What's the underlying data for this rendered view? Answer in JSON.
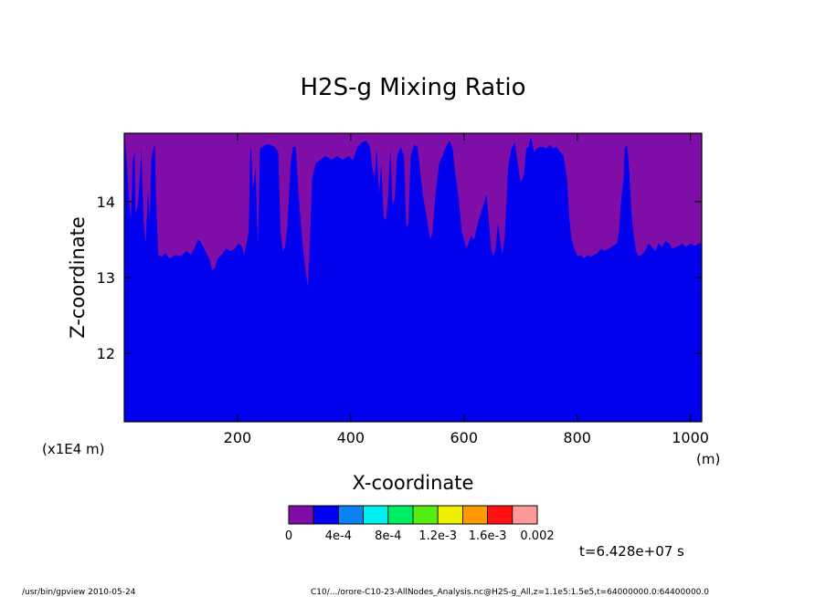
{
  "chart_data": {
    "type": "heatmap",
    "title": "H2S-g Mixing Ratio",
    "xlabel": "X-coordinate",
    "ylabel": "Z-coordinate",
    "x_unit": "(m)",
    "y_scale_note": "(x1E4 m)",
    "xlim": [
      0,
      1020
    ],
    "ylim": [
      11.1,
      14.9
    ],
    "x_ticks": [
      "200",
      "400",
      "600",
      "800",
      "1000"
    ],
    "x_tick_values": [
      200,
      400,
      600,
      800,
      1000
    ],
    "y_ticks": [
      "12",
      "13",
      "14"
    ],
    "y_tick_values": [
      12,
      13,
      14
    ],
    "colorbar": {
      "colors": [
        "#7f0ea8",
        "#0000ee",
        "#0a82f0",
        "#00f0f0",
        "#00ee66",
        "#55ee11",
        "#eeee00",
        "#ff9900",
        "#ff1111",
        "#ff9999"
      ],
      "labels": [
        "0",
        "4e-4",
        "8e-4",
        "1.2e-3",
        "1.6e-3",
        "0.002"
      ]
    },
    "boundary": {
      "description_free_levels": [
        0,
        0.0004
      ],
      "points": [
        [
          0,
          14.9
        ],
        [
          2,
          14.75
        ],
        [
          5,
          14.45
        ],
        [
          8,
          14.05
        ],
        [
          12,
          13.75
        ],
        [
          15,
          14.55
        ],
        [
          18,
          14.65
        ],
        [
          20,
          13.85
        ],
        [
          24,
          13.95
        ],
        [
          28,
          14.35
        ],
        [
          30,
          14.72
        ],
        [
          34,
          13.75
        ],
        [
          38,
          13.45
        ],
        [
          42,
          14.15
        ],
        [
          45,
          13.75
        ],
        [
          48,
          14.55
        ],
        [
          52,
          14.72
        ],
        [
          54,
          14.75
        ],
        [
          56,
          14.05
        ],
        [
          60,
          13.3
        ],
        [
          66,
          13.27
        ],
        [
          72,
          13.32
        ],
        [
          80,
          13.25
        ],
        [
          90,
          13.3
        ],
        [
          100,
          13.28
        ],
        [
          110,
          13.35
        ],
        [
          118,
          13.3
        ],
        [
          125,
          13.4
        ],
        [
          130,
          13.5
        ],
        [
          135,
          13.47
        ],
        [
          140,
          13.4
        ],
        [
          145,
          13.32
        ],
        [
          150,
          13.25
        ],
        [
          155,
          13.1
        ],
        [
          160,
          13.12
        ],
        [
          165,
          13.25
        ],
        [
          172,
          13.3
        ],
        [
          180,
          13.38
        ],
        [
          188,
          13.35
        ],
        [
          195,
          13.38
        ],
        [
          202,
          13.45
        ],
        [
          208,
          13.4
        ],
        [
          212,
          13.3
        ],
        [
          216,
          13.45
        ],
        [
          220,
          13.6
        ],
        [
          222,
          14.6
        ],
        [
          224,
          14.72
        ],
        [
          227,
          14.15
        ],
        [
          232,
          14.45
        ],
        [
          236,
          13.4
        ],
        [
          240,
          14.7
        ],
        [
          244,
          14.72
        ],
        [
          250,
          14.75
        ],
        [
          258,
          14.75
        ],
        [
          266,
          14.72
        ],
        [
          272,
          14.65
        ],
        [
          276,
          13.6
        ],
        [
          280,
          13.35
        ],
        [
          284,
          13.4
        ],
        [
          288,
          13.65
        ],
        [
          294,
          14.5
        ],
        [
          298,
          14.72
        ],
        [
          303,
          14.72
        ],
        [
          307,
          14.2
        ],
        [
          312,
          13.7
        ],
        [
          316,
          13.35
        ],
        [
          320,
          13.1
        ],
        [
          324,
          12.88
        ],
        [
          327,
          13.3
        ],
        [
          332,
          14.3
        ],
        [
          338,
          14.5
        ],
        [
          346,
          14.55
        ],
        [
          356,
          14.6
        ],
        [
          366,
          14.55
        ],
        [
          376,
          14.6
        ],
        [
          386,
          14.55
        ],
        [
          396,
          14.6
        ],
        [
          404,
          14.55
        ],
        [
          412,
          14.72
        ],
        [
          420,
          14.78
        ],
        [
          428,
          14.8
        ],
        [
          434,
          14.72
        ],
        [
          438,
          14.45
        ],
        [
          442,
          14.3
        ],
        [
          446,
          14.7
        ],
        [
          450,
          14.1
        ],
        [
          454,
          14.5
        ],
        [
          458,
          13.8
        ],
        [
          462,
          13.75
        ],
        [
          466,
          14.05
        ],
        [
          470,
          14.7
        ],
        [
          474,
          13.95
        ],
        [
          478,
          14.05
        ],
        [
          482,
          14.6
        ],
        [
          488,
          14.72
        ],
        [
          494,
          14.6
        ],
        [
          498,
          13.65
        ],
        [
          502,
          13.72
        ],
        [
          506,
          14.6
        ],
        [
          512,
          14.75
        ],
        [
          518,
          14.72
        ],
        [
          524,
          14.3
        ],
        [
          528,
          14.05
        ],
        [
          532,
          13.9
        ],
        [
          536,
          13.7
        ],
        [
          540,
          13.5
        ],
        [
          544,
          13.58
        ],
        [
          550,
          14.1
        ],
        [
          556,
          14.5
        ],
        [
          562,
          14.6
        ],
        [
          568,
          14.72
        ],
        [
          574,
          14.8
        ],
        [
          580,
          14.7
        ],
        [
          584,
          14.4
        ],
        [
          588,
          14.2
        ],
        [
          592,
          13.95
        ],
        [
          596,
          13.6
        ],
        [
          600,
          13.5
        ],
        [
          604,
          13.38
        ],
        [
          608,
          13.45
        ],
        [
          612,
          13.55
        ],
        [
          618,
          13.5
        ],
        [
          624,
          13.7
        ],
        [
          630,
          13.85
        ],
        [
          636,
          14.0
        ],
        [
          640,
          14.1
        ],
        [
          644,
          13.75
        ],
        [
          648,
          13.38
        ],
        [
          652,
          13.28
        ],
        [
          656,
          13.38
        ],
        [
          660,
          13.72
        ],
        [
          664,
          13.5
        ],
        [
          668,
          13.3
        ],
        [
          672,
          13.55
        ],
        [
          678,
          14.45
        ],
        [
          684,
          14.7
        ],
        [
          690,
          14.78
        ],
        [
          696,
          14.45
        ],
        [
          700,
          14.25
        ],
        [
          706,
          14.35
        ],
        [
          710,
          14.7
        ],
        [
          714,
          14.72
        ],
        [
          718,
          14.85
        ],
        [
          724,
          14.65
        ],
        [
          728,
          14.7
        ],
        [
          734,
          14.72
        ],
        [
          740,
          14.72
        ],
        [
          746,
          14.7
        ],
        [
          752,
          14.75
        ],
        [
          758,
          14.7
        ],
        [
          764,
          14.72
        ],
        [
          770,
          14.65
        ],
        [
          776,
          14.6
        ],
        [
          782,
          14.3
        ],
        [
          786,
          13.8
        ],
        [
          790,
          13.5
        ],
        [
          794,
          13.4
        ],
        [
          800,
          13.28
        ],
        [
          806,
          13.3
        ],
        [
          812,
          13.25
        ],
        [
          818,
          13.3
        ],
        [
          824,
          13.27
        ],
        [
          830,
          13.3
        ],
        [
          836,
          13.32
        ],
        [
          842,
          13.38
        ],
        [
          848,
          13.35
        ],
        [
          856,
          13.38
        ],
        [
          864,
          13.42
        ],
        [
          870,
          13.45
        ],
        [
          874,
          13.6
        ],
        [
          878,
          14.05
        ],
        [
          882,
          14.3
        ],
        [
          884,
          14.7
        ],
        [
          888,
          14.75
        ],
        [
          892,
          14.4
        ],
        [
          896,
          13.85
        ],
        [
          900,
          13.55
        ],
        [
          904,
          13.35
        ],
        [
          908,
          13.28
        ],
        [
          914,
          13.3
        ],
        [
          920,
          13.35
        ],
        [
          926,
          13.45
        ],
        [
          932,
          13.4
        ],
        [
          938,
          13.35
        ],
        [
          944,
          13.45
        ],
        [
          950,
          13.4
        ],
        [
          956,
          13.48
        ],
        [
          962,
          13.45
        ],
        [
          968,
          13.38
        ],
        [
          974,
          13.4
        ],
        [
          980,
          13.42
        ],
        [
          986,
          13.45
        ],
        [
          992,
          13.4
        ],
        [
          1000,
          13.45
        ],
        [
          1008,
          13.42
        ],
        [
          1014,
          13.45
        ],
        [
          1020,
          13.45
        ]
      ]
    }
  },
  "footer": {
    "time_label": "t=6.428e+07 s",
    "program_info": "/usr/bin/gpview   2010-05-24",
    "file_info": "C10/.../orore-C10-23-AllNodes_Analysis.nc@H2S-g_All,z=1.1e5:1.5e5,t=64000000.0:64400000.0"
  }
}
